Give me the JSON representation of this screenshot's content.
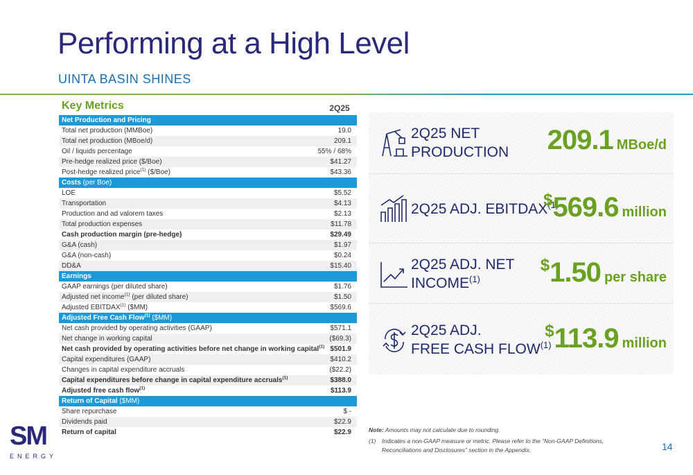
{
  "header": {
    "title": "Performing at a High Level",
    "subtitle": "UINTA BASIN SHINES"
  },
  "table": {
    "title": "Key Metrics",
    "column": "2Q25",
    "rows": [
      {
        "section": "Net Production and Pricing"
      },
      {
        "label": "Total net production (MMBoe)",
        "value": "19.0"
      },
      {
        "label": "Total net production (MBoe/d)",
        "value": "209.1"
      },
      {
        "label": "Oil / liquids percentage",
        "value": "55% / 68%"
      },
      {
        "label": "Pre-hedge realized price ($/Boe)",
        "value": "$41.27"
      },
      {
        "label": "Post-hedge realized price",
        "note": "(1)",
        "label_end": " ($/Boe)",
        "value": "$43.36"
      },
      {
        "section": "Costs",
        "section_note": " (per Boe)"
      },
      {
        "label": "LOE",
        "value": "$5.52"
      },
      {
        "label": "Transportation",
        "value": "$4.13"
      },
      {
        "label": "Production and ad valorem taxes",
        "value": "$2.13"
      },
      {
        "label": "Total production expenses",
        "value": "$11.78"
      },
      {
        "label": "Cash production margin (pre-hedge)",
        "value": "$29.49",
        "bold": true
      },
      {
        "label": "G&A (cash)",
        "value": "$1.97"
      },
      {
        "label": "G&A (non-cash)",
        "value": "$0.24"
      },
      {
        "label": "DD&A",
        "value": "$15.40"
      },
      {
        "section": "Earnings"
      },
      {
        "label": "GAAP earnings (per diluted share)",
        "value": "$1.76"
      },
      {
        "label": "Adjusted net income",
        "note": "(1)",
        "label_end": " (per diluted share)",
        "value": "$1.50"
      },
      {
        "label": "Adjusted EBITDAX",
        "note": "(1)",
        "label_end": " ($MM)",
        "value": "$569.6"
      },
      {
        "section": "Adjusted Free Cash Flow",
        "note": "(1)",
        "section_note": " ($MM)"
      },
      {
        "label": "Net cash provided by operating activities (GAAP)",
        "value": "$571.1"
      },
      {
        "label": "Net change in working capital",
        "value": "($69.3)"
      },
      {
        "label": "Net cash provided by operating activities before net change in working capital",
        "note": "(1)",
        "value": "$501.9",
        "bold": true
      },
      {
        "label": "Capital expenditures (GAAP)",
        "value": "$410.2"
      },
      {
        "label": "Changes in capital expenditure accruals",
        "value": "($22.2)"
      },
      {
        "label": "Capital expenditures before change in capital expenditure accruals",
        "note": "(1)",
        "value": "$388.0",
        "bold": true
      },
      {
        "label": "Adjusted free cash flow",
        "note": "(1)",
        "value": "$113.9",
        "bold": true
      },
      {
        "section": "Return of Capital",
        "section_note": " ($MM)"
      },
      {
        "label": "Share repurchase",
        "value": "$ -"
      },
      {
        "label": "Dividends paid",
        "value": "$22.9"
      },
      {
        "label": "Return of capital",
        "value": "$22.9",
        "bold": true
      }
    ]
  },
  "highlights": [
    {
      "label": [
        "2Q25 NET",
        "PRODUCTION"
      ],
      "value": "209.1",
      "unit": "MBoe/d"
    },
    {
      "label": [
        "2Q25 ADJ. EBITDAX"
      ],
      "note": "(1)",
      "prefix": "$",
      "value": "569.6",
      "unit": "million"
    },
    {
      "label": [
        "2Q25 ADJ. NET",
        "INCOME"
      ],
      "note": "(1)",
      "prefix": "$",
      "value": "1.50",
      "unit": "per share"
    },
    {
      "label": [
        "2Q25 ADJ.",
        "FREE CASH FLOW"
      ],
      "note": "(1)",
      "prefix": "$",
      "value": "113.9",
      "unit": "million"
    }
  ],
  "footnotes": {
    "note_label": "Note:",
    "note": " Amounts may not calculate due to rounding.",
    "marker": "(1)",
    "lines": [
      "Indicates a non-GAAP measure or metric. Please refer to the “Non-GAAP Definitions,",
      "Reconciliations and Disclosures” section in the Appendix."
    ]
  },
  "logo": {
    "mark": "SM",
    "name": "ENERGY"
  },
  "page_number": "14"
}
